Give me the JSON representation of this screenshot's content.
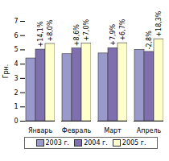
{
  "chart_data": {
    "type": "bar",
    "y_label": "Грн.",
    "categories": [
      "Январь",
      "Февраль",
      "Март",
      "Апрель"
    ],
    "series": [
      {
        "name": "2003 г.",
        "color": "#9999cc",
        "values": [
          4.4,
          4.7,
          4.75,
          5.0
        ]
      },
      {
        "name": "2004 г.",
        "color": "#7f6fae",
        "values": [
          5.02,
          5.1,
          5.12,
          4.86
        ]
      },
      {
        "name": "2005 г.",
        "color": "#ffffcc",
        "values": [
          5.42,
          5.45,
          5.47,
          5.75
        ]
      }
    ],
    "annotations": [
      {
        "category": "Январь",
        "series": "2004 г.",
        "text": "+14,1%"
      },
      {
        "category": "Январь",
        "series": "2005 г.",
        "text": "+8,0%"
      },
      {
        "category": "Февраль",
        "series": "2004 г.",
        "text": "+8,6%"
      },
      {
        "category": "Февраль",
        "series": "2005 г.",
        "text": "+7,0%"
      },
      {
        "category": "Март",
        "series": "2004 г.",
        "text": "+7,9%"
      },
      {
        "category": "Март",
        "series": "2005 г.",
        "text": "+6,7%"
      },
      {
        "category": "Апрель",
        "series": "2004 г.",
        "text": "-2,8%"
      },
      {
        "category": "Апрель",
        "series": "2005 г.",
        "text": "+18,3%"
      }
    ],
    "ylim": [
      0,
      7
    ],
    "yticks": [
      0,
      1,
      2,
      3,
      4,
      5,
      6,
      7
    ],
    "legend": "bottom",
    "grid": false
  }
}
